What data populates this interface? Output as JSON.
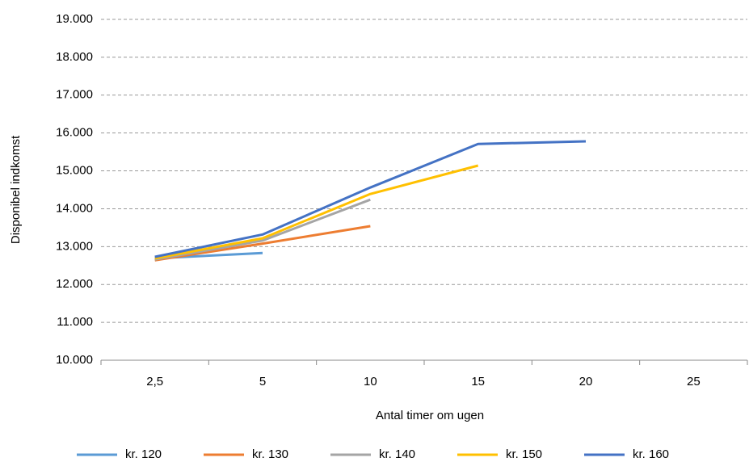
{
  "chart_data": {
    "type": "line",
    "x_label": "Antal timer om ugen",
    "y_label": "Disponibel indkomst",
    "categories": [
      "2,5",
      "5",
      "10",
      "15",
      "20",
      "25"
    ],
    "series": [
      {
        "name": "kr. 120",
        "color": "#5b9bd5",
        "values": [
          12690,
          12830,
          null,
          null,
          null,
          null
        ]
      },
      {
        "name": "kr. 130",
        "color": "#ed7d31",
        "values": [
          12640,
          13080,
          13540,
          null,
          null,
          null
        ]
      },
      {
        "name": "kr. 140",
        "color": "#a5a5a5",
        "values": [
          12660,
          13160,
          14240,
          null,
          null,
          null
        ]
      },
      {
        "name": "kr. 150",
        "color": "#ffc000",
        "values": [
          12690,
          13220,
          14390,
          15140,
          null,
          null
        ]
      },
      {
        "name": "kr. 160",
        "color": "#4472c4",
        "values": [
          12730,
          13320,
          14560,
          15710,
          15780,
          null
        ]
      }
    ],
    "ylim": [
      10000,
      19000
    ],
    "yticks": [
      {
        "value": 10000,
        "label": "10.000"
      },
      {
        "value": 11000,
        "label": "11.000"
      },
      {
        "value": 12000,
        "label": "12.000"
      },
      {
        "value": 13000,
        "label": "13.000"
      },
      {
        "value": 14000,
        "label": "14.000"
      },
      {
        "value": 15000,
        "label": "15.000"
      },
      {
        "value": 16000,
        "label": "16.000"
      },
      {
        "value": 17000,
        "label": "17.000"
      },
      {
        "value": 18000,
        "label": "18.000"
      },
      {
        "value": 19000,
        "label": "19.000"
      }
    ],
    "grid": true,
    "legend": "bottom"
  }
}
